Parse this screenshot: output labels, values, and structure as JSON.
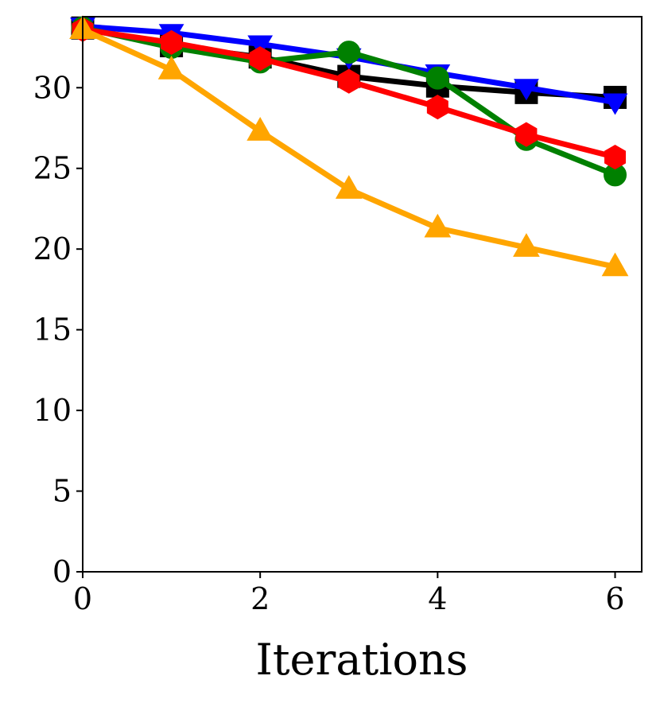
{
  "chart_data": {
    "type": "line",
    "title": "",
    "xlabel": "Iterations",
    "ylabel": "",
    "xlim": [
      0,
      6.3
    ],
    "ylim": [
      0,
      34.4
    ],
    "xticks": [
      0,
      2,
      4,
      6
    ],
    "yticks": [
      0,
      5,
      10,
      15,
      20,
      25,
      30
    ],
    "grid": false,
    "x": [
      0,
      1,
      2,
      3,
      4,
      5,
      6
    ],
    "series": [
      {
        "name": "black-square",
        "color": "#000000",
        "marker": "square",
        "values": [
          33.7,
          32.6,
          31.9,
          30.7,
          30.1,
          29.7,
          29.4
        ]
      },
      {
        "name": "blue-triangle-down",
        "color": "#0000ff",
        "marker": "triangle-down",
        "values": [
          33.8,
          33.4,
          32.7,
          31.9,
          30.9,
          30.0,
          29.1
        ]
      },
      {
        "name": "green-circle",
        "color": "#008000",
        "marker": "circle",
        "values": [
          33.7,
          32.5,
          31.6,
          32.2,
          30.6,
          26.8,
          24.6
        ]
      },
      {
        "name": "red-hexagon",
        "color": "#ff0000",
        "marker": "hexagon",
        "values": [
          33.6,
          32.8,
          31.8,
          30.4,
          28.8,
          27.1,
          25.7
        ]
      },
      {
        "name": "orange-triangle-up",
        "color": "#ffa500",
        "marker": "triangle-up",
        "values": [
          33.6,
          31.1,
          27.3,
          23.7,
          21.3,
          20.1,
          18.9
        ]
      }
    ]
  }
}
